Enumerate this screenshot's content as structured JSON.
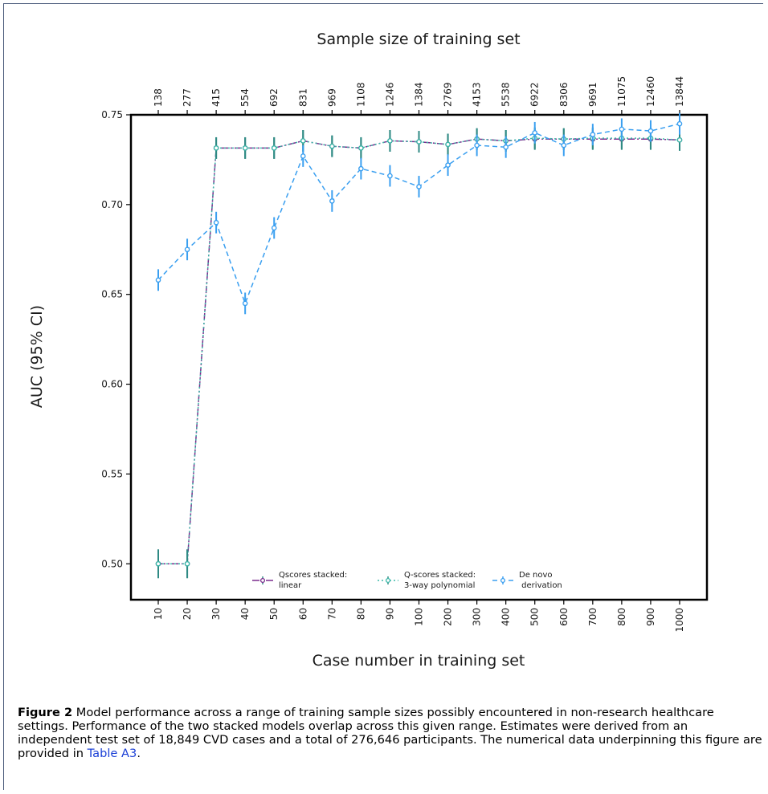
{
  "chart_data": {
    "type": "line",
    "top_axis_label": "Sample size of training set",
    "top_ticks": [
      "138",
      "277",
      "415",
      "554",
      "692",
      "831",
      "969",
      "1108",
      "1246",
      "1384",
      "2769",
      "4153",
      "5538",
      "6922",
      "8306",
      "9691",
      "11075",
      "12460",
      "13844"
    ],
    "xlabel": "Case number in training set",
    "categories": [
      "10",
      "20",
      "30",
      "40",
      "50",
      "60",
      "70",
      "80",
      "90",
      "100",
      "200",
      "300",
      "400",
      "500",
      "600",
      "700",
      "800",
      "900",
      "1000"
    ],
    "ylabel": "AUC (95% CI)",
    "ylim": [
      0.48,
      0.75
    ],
    "yticks": [
      "0.75",
      "0.70",
      "0.65",
      "0.60",
      "0.55",
      "0.50"
    ],
    "ytick_values": [
      0.75,
      0.7,
      0.65,
      0.6,
      0.55,
      0.5
    ],
    "legend_position": "bottom-center",
    "series": [
      {
        "name": "Qscores stacked:\nlinear",
        "name_lines": [
          "Qscores stacked:",
          "linear"
        ],
        "color": "#7b2d8e",
        "dash": "dashdot",
        "values": [
          0.5,
          0.5,
          0.7315,
          0.7315,
          0.7315,
          0.7355,
          0.7325,
          0.7315,
          0.7355,
          0.735,
          0.7335,
          0.7365,
          0.7355,
          0.7365,
          0.7365,
          0.7365,
          0.7365,
          0.7365,
          0.736
        ],
        "err": [
          0.008,
          0.008,
          0.006,
          0.006,
          0.006,
          0.006,
          0.006,
          0.006,
          0.006,
          0.006,
          0.006,
          0.006,
          0.006,
          0.006,
          0.006,
          0.006,
          0.006,
          0.006,
          0.006
        ]
      },
      {
        "name": "Q-scores stacked:\n3-way polynomial",
        "name_lines": [
          "Q-scores stacked:",
          "3-way polynomial"
        ],
        "color": "#3bb8a8",
        "dash": "dotted",
        "values": [
          0.5,
          0.5,
          0.7315,
          0.7315,
          0.7315,
          0.7355,
          0.7325,
          0.7315,
          0.7355,
          0.735,
          0.7335,
          0.7365,
          0.7355,
          0.737,
          0.7365,
          0.737,
          0.737,
          0.737,
          0.736
        ],
        "err": [
          0.008,
          0.008,
          0.006,
          0.006,
          0.006,
          0.006,
          0.006,
          0.006,
          0.006,
          0.006,
          0.006,
          0.006,
          0.006,
          0.006,
          0.006,
          0.006,
          0.006,
          0.006,
          0.006
        ]
      },
      {
        "name": "De novo\nderivation",
        "name_lines": [
          "De novo",
          " derivation"
        ],
        "color": "#3a9ff0",
        "dash": "dashed",
        "values": [
          0.658,
          0.675,
          0.69,
          0.645,
          0.687,
          0.727,
          0.702,
          0.72,
          0.716,
          0.71,
          0.722,
          0.733,
          0.732,
          0.74,
          0.733,
          0.739,
          0.742,
          0.741,
          0.745
        ],
        "err": [
          0.006,
          0.006,
          0.006,
          0.006,
          0.006,
          0.006,
          0.006,
          0.006,
          0.006,
          0.006,
          0.006,
          0.006,
          0.006,
          0.006,
          0.006,
          0.006,
          0.006,
          0.006,
          0.006
        ]
      }
    ]
  },
  "caption": {
    "label": "Figure 2",
    "text": " Model performance across a range of training sample sizes possibly encountered in non-research healthcare settings. Performance of the two stacked models overlap across this given range. Estimates were derived from an independent test set of 18,849 CVD cases and a total of 276,646 participants. The numerical data underpinning this figure are provided in ",
    "link_text": "Table A3",
    "end": "."
  }
}
